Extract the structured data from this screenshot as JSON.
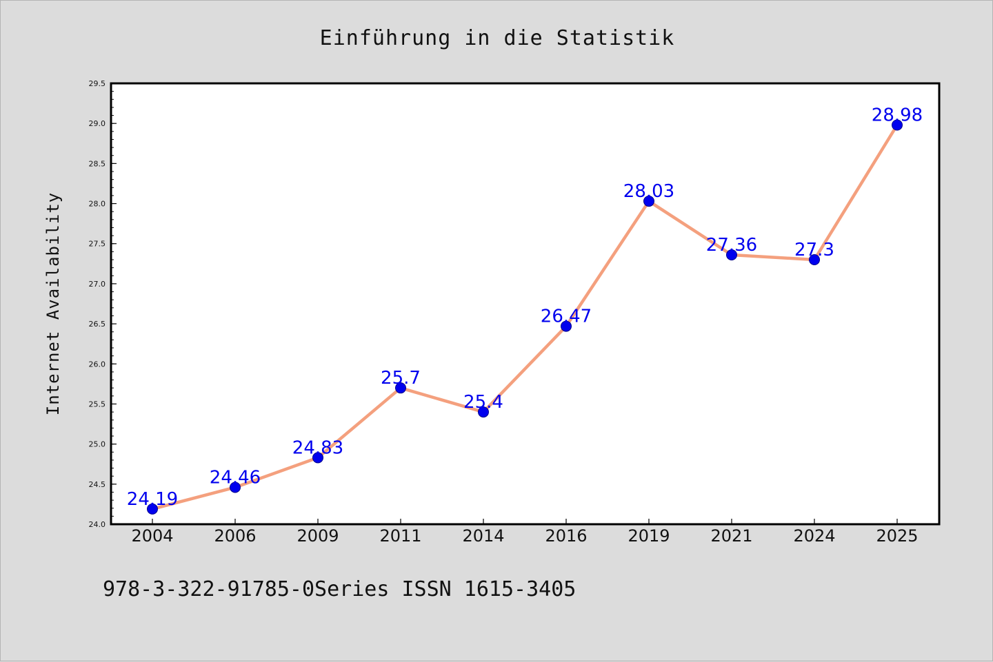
{
  "chart_data": {
    "type": "line",
    "title": "Einführung in die Statistik",
    "xlabel": "",
    "ylabel": "Internet Availability",
    "categories": [
      "2004",
      "2006",
      "2009",
      "2011",
      "2014",
      "2016",
      "2019",
      "2021",
      "2024",
      "2025"
    ],
    "series": [
      {
        "values": [
          24.19,
          24.46,
          24.83,
          25.7,
          25.4,
          26.47,
          28.03,
          27.36,
          27.3,
          28.98
        ]
      }
    ],
    "data_labels": [
      "24.19",
      "24.46",
      "24.83",
      "25.7",
      "25.4",
      "26.47",
      "28.03",
      "27.36",
      "27.3",
      "28.98"
    ],
    "ylim": [
      24.0,
      29.5
    ],
    "yticks": [
      "24.0",
      "24.5",
      "25.0",
      "25.5",
      "26.0",
      "26.5",
      "27.0",
      "27.5",
      "28.0",
      "28.5",
      "29.0",
      "29.5"
    ],
    "grid": false,
    "legend": false,
    "colors": {
      "line": "#f4a07e",
      "marker": "#0000ee",
      "label": "#0000ee",
      "background": "#dcdcdc",
      "plot_area": "#ffffff"
    }
  },
  "footer": "978-3-322-91785-0Series ISSN 1615-3405"
}
